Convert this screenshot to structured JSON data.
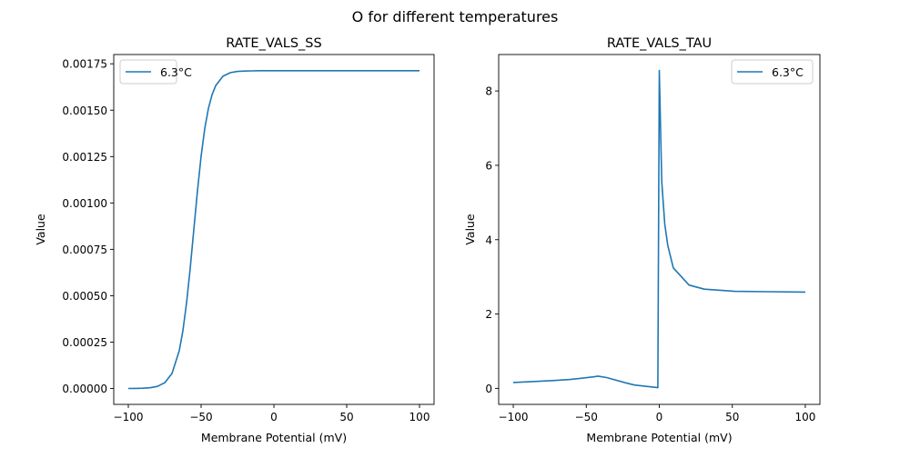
{
  "figure_title": "O for different temperatures",
  "chart_data": [
    {
      "type": "line",
      "title": "RATE_VALS_SS",
      "xlabel": "Membrane Potential (mV)",
      "ylabel": "Value",
      "xlim": [
        -110,
        110
      ],
      "ylim": [
        -8.56e-05,
        0.0018
      ],
      "xticks": [
        -100,
        -50,
        0,
        50,
        100
      ],
      "yticks": [
        0,
        0.00025,
        0.0005,
        0.00075,
        0.001,
        0.00125,
        0.0015,
        0.00175
      ],
      "ytick_decimals": 5,
      "legend_position": "upper-left",
      "grid": false,
      "series": [
        {
          "name": "6.3°C",
          "color": "#1f77b4",
          "x": [
            -100,
            -95,
            -90,
            -85,
            -80,
            -75,
            -70,
            -65,
            -62.5,
            -60,
            -57.5,
            -55,
            -52.5,
            -50,
            -47.5,
            -45,
            -42.5,
            -40,
            -35,
            -30,
            -25,
            -20,
            -15,
            -10,
            0,
            25,
            50,
            75,
            100
          ],
          "y": [
            0,
            6e-07,
            1.6e-06,
            4.2e-06,
            1.15e-05,
            3.08e-05,
            8.1e-05,
            0.000204,
            0.000312,
            0.000461,
            0.000647,
            0.000857,
            0.001066,
            0.001252,
            0.001401,
            0.001509,
            0.001583,
            0.001632,
            0.001683,
            0.001702,
            0.001709,
            0.001711,
            0.001712,
            0.001713,
            0.001713,
            0.001713,
            0.001713,
            0.001713,
            0.001713
          ]
        }
      ]
    },
    {
      "type": "line",
      "title": "RATE_VALS_TAU",
      "xlabel": "Membrane Potential (mV)",
      "ylabel": "Value",
      "xlim": [
        -110,
        110
      ],
      "ylim": [
        -0.43,
        8.98
      ],
      "xticks": [
        -100,
        -50,
        0,
        50,
        100
      ],
      "yticks": [
        0,
        2,
        4,
        6,
        8
      ],
      "ytick_decimals": 0,
      "legend_position": "upper-right",
      "grid": false,
      "series": [
        {
          "name": "6.3°C",
          "color": "#1f77b4",
          "x": [
            -100,
            -73,
            -61,
            -45,
            -42,
            -36,
            -23,
            -17,
            -1,
            0,
            1.7,
            3.75,
            5.8,
            9.6,
            20.4,
            30.8,
            51.7,
            75,
            100
          ],
          "y": [
            0.16,
            0.21,
            0.24,
            0.31,
            0.33,
            0.29,
            0.15,
            0.09,
            0.02,
            8.55,
            5.56,
            4.42,
            3.85,
            3.24,
            2.78,
            2.67,
            2.61,
            2.6,
            2.59
          ]
        }
      ]
    }
  ]
}
